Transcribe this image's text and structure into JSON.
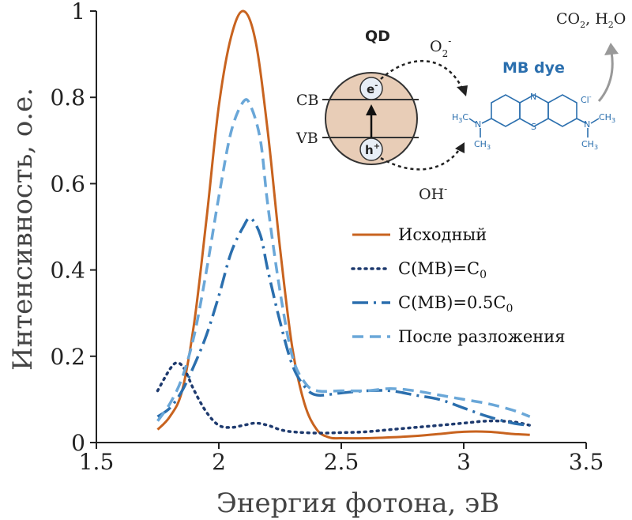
{
  "chart_data": {
    "type": "line",
    "title": "",
    "xlabel": "Энергия фотона, эВ",
    "ylabel": "Интенсивность, о.е.",
    "xlim": [
      1.5,
      3.5
    ],
    "ylim": [
      0,
      1
    ],
    "xticks": [
      "1.5",
      "2",
      "2.5",
      "3",
      "3.5"
    ],
    "yticks": [
      "0",
      "0.2",
      "0.4",
      "0.6",
      "0.8",
      "1"
    ],
    "legend_position": "center-right",
    "series": [
      {
        "name": "Исходный",
        "color": "#c8631f",
        "style": "solid",
        "x": [
          1.75,
          1.8,
          1.85,
          1.9,
          1.95,
          2.0,
          2.05,
          2.1,
          2.15,
          2.2,
          2.25,
          2.3,
          2.35,
          2.4,
          2.45,
          2.5,
          2.6,
          2.7,
          2.8,
          2.9,
          3.0,
          3.1,
          3.2,
          3.27
        ],
        "y": [
          0.03,
          0.06,
          0.12,
          0.28,
          0.52,
          0.78,
          0.94,
          1.0,
          0.93,
          0.72,
          0.45,
          0.22,
          0.09,
          0.03,
          0.012,
          0.01,
          0.01,
          0.012,
          0.015,
          0.02,
          0.025,
          0.025,
          0.02,
          0.018
        ]
      },
      {
        "name": "C(MB)=C0",
        "color": "#1e3a6e",
        "style": "dotted",
        "x": [
          1.75,
          1.8,
          1.83,
          1.86,
          1.9,
          1.95,
          2.0,
          2.05,
          2.1,
          2.15,
          2.2,
          2.25,
          2.3,
          2.4,
          2.5,
          2.6,
          2.7,
          2.8,
          2.9,
          3.0,
          3.1,
          3.2,
          3.27
        ],
        "y": [
          0.12,
          0.17,
          0.185,
          0.17,
          0.12,
          0.07,
          0.04,
          0.035,
          0.04,
          0.045,
          0.04,
          0.03,
          0.025,
          0.022,
          0.023,
          0.025,
          0.03,
          0.035,
          0.04,
          0.045,
          0.05,
          0.048,
          0.04
        ]
      },
      {
        "name": "C(MB)=0.5C0",
        "color": "#2b6fae",
        "style": "dash-dot",
        "x": [
          1.75,
          1.8,
          1.85,
          1.9,
          1.95,
          2.0,
          2.05,
          2.1,
          2.13,
          2.17,
          2.2,
          2.25,
          2.3,
          2.35,
          2.4,
          2.5,
          2.6,
          2.7,
          2.8,
          2.9,
          3.0,
          3.1,
          3.2,
          3.27
        ],
        "y": [
          0.06,
          0.08,
          0.12,
          0.18,
          0.25,
          0.34,
          0.44,
          0.5,
          0.52,
          0.48,
          0.4,
          0.28,
          0.18,
          0.13,
          0.11,
          0.115,
          0.12,
          0.12,
          0.11,
          0.1,
          0.08,
          0.06,
          0.045,
          0.04
        ]
      },
      {
        "name": "После разложения",
        "color": "#6aa7d8",
        "style": "dashed",
        "x": [
          1.75,
          1.8,
          1.85,
          1.9,
          1.95,
          2.0,
          2.05,
          2.1,
          2.13,
          2.17,
          2.2,
          2.25,
          2.3,
          2.35,
          2.4,
          2.5,
          2.6,
          2.7,
          2.8,
          2.9,
          3.0,
          3.1,
          3.2,
          3.27
        ],
        "y": [
          0.05,
          0.09,
          0.15,
          0.25,
          0.4,
          0.57,
          0.72,
          0.79,
          0.78,
          0.7,
          0.55,
          0.35,
          0.2,
          0.14,
          0.12,
          0.12,
          0.12,
          0.125,
          0.12,
          0.11,
          0.1,
          0.09,
          0.075,
          0.06
        ]
      }
    ]
  },
  "legend": [
    {
      "name": "Исходный",
      "sub": ""
    },
    {
      "name": "C(MB)=C",
      "sub": "0"
    },
    {
      "name": "C(MB)=0.5C",
      "sub": "0"
    },
    {
      "name": "После разложения",
      "sub": ""
    }
  ],
  "inset": {
    "qd_label": "QD",
    "cb_label": "CB",
    "vb_label": "VB",
    "electron": "e",
    "electron_sup": "-",
    "hole": "h",
    "hole_sup": "+",
    "o2": "O",
    "o2_sub": "2",
    "o2_sup": "-",
    "oh": "OH",
    "oh_sup": "-",
    "dye_label": "MB dye",
    "cl": "Cl",
    "cl_sup": "-",
    "products": "CO",
    "products_sub": "2",
    "products_mid": ", H",
    "products_sub2": "2",
    "products_end": "O",
    "n_atom": "N",
    "s_atom": "S",
    "ring_n": "N",
    "ch3": "CH",
    "ch3_sub": "3",
    "h3c": "H",
    "h3c_sub": "3",
    "h3c_c": "C",
    "dye_color": "#2b6fae",
    "qd_fill": "#e8cdb7"
  }
}
